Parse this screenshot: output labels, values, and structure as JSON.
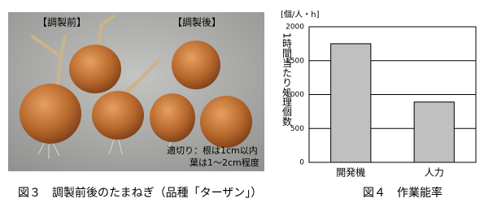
{
  "photo": {
    "labels": [
      "【調製前】",
      "【調製後】"
    ],
    "note": [
      "適切り：根は1cm以内",
      "葉は1～2cm程度"
    ],
    "caption": "図３　調製前後のたまねぎ（品種「ターザン」）"
  },
  "chart_data": {
    "type": "bar",
    "y_unit": "[個/人・h]",
    "y_label": "1時間当たり処理個数",
    "categories": [
      "開発機",
      "人力"
    ],
    "values": [
      1750,
      890
    ],
    "color": "#c0c0c0",
    "ylim": [
      0,
      2000
    ],
    "yticks": [
      0,
      500,
      1000,
      1500,
      2000
    ],
    "grid": true,
    "caption": "図４　作業能率"
  }
}
